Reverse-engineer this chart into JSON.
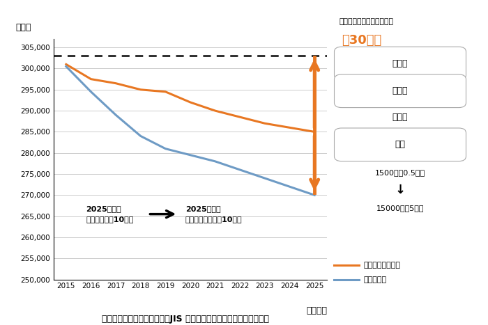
{
  "years": [
    2015,
    2016,
    2017,
    2018,
    2019,
    2020,
    2021,
    2022,
    2023,
    2024,
    2025
  ],
  "female_qualified": [
    301000,
    297500,
    296500,
    295000,
    294500,
    292000,
    290000,
    288500,
    287000,
    286000,
    285000
  ],
  "total_qualified": [
    300500,
    294500,
    289000,
    284000,
    281000,
    279500,
    278000,
    276000,
    274000,
    272000,
    270000
  ],
  "min_required": 303000,
  "orange_color": "#E87722",
  "blue_color": "#6E9BC5",
  "dotted_line_color": "#222222",
  "background_color": "#FFFFFF",
  "grid_color": "#CCCCCC",
  "ylim_min": 250000,
  "ylim_max": 307000,
  "yticks": [
    250000,
    255000,
    260000,
    265000,
    270000,
    275000,
    280000,
    285000,
    290000,
    295000,
    300000,
    305000
  ],
  "ylabel": "（人）",
  "xlabel": "（年度）",
  "title": "溶接技能者減少への打ち手（JIS 溶接技能者評価試験の有資格者数）",
  "legend_female": "女性の有資格者数",
  "legend_total": "総資格者数",
  "ann_text1": "2025年まで\n就労人口は約10％減",
  "ann_text2": "2025年まで\n就労技能者は最悓10％減",
  "right_title": "最低限必要な溶接技能者数",
  "right_big_text": "約30万人",
  "label_gaikokujin": "外国人",
  "label_wakamonosha": "若年者",
  "label_koureicha": "高齢者",
  "label_josei": "女性",
  "right_bottom_text1": "1500人（0.5％）",
  "right_bottom_text2": "15000人（5％）"
}
